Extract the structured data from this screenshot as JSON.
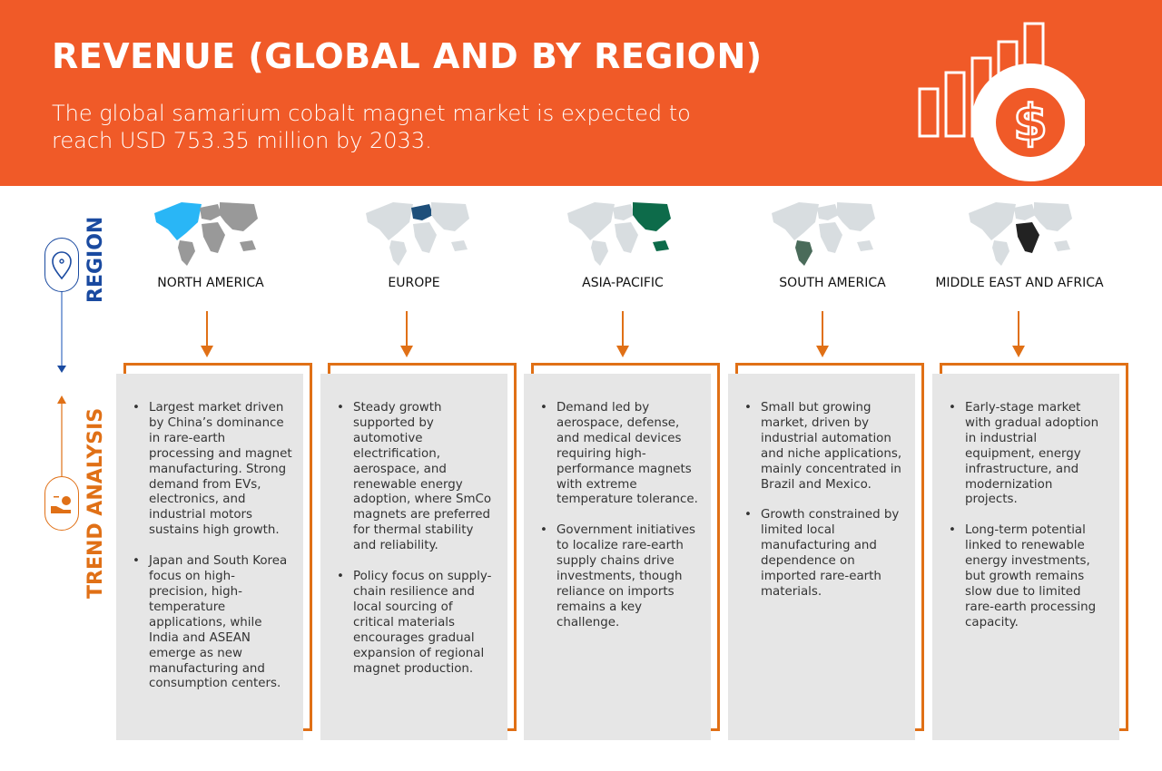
{
  "header": {
    "title": "REVENUE (GLOBAL AND BY REGION)",
    "subtitle": "The global samarium cobalt magnet market is expected to reach USD 753.35 million by 2033.",
    "icon": "bar-chart-dollar-icon",
    "color": "#f05a28"
  },
  "side": {
    "region_label": "REGION",
    "trend_label": "TREND ANALYSIS",
    "region_color": "#1a4aa0",
    "trend_color": "#e07016"
  },
  "regions": [
    {
      "name": "NORTH AMERICA",
      "highlight": "#29b6f6",
      "bullets": [
        "Largest market driven by China’s dominance in rare-earth processing and magnet manufacturing. Strong demand from EVs, electronics, and industrial motors sustains high growth.",
        "Japan and South Korea focus on high-precision, high-temperature applications, while India and ASEAN emerge as new manufacturing and consumption centers."
      ]
    },
    {
      "name": "EUROPE",
      "highlight": "#1e4f7a",
      "bullets": [
        "Steady growth supported by automotive electrification, aerospace, and renewable energy adoption, where SmCo magnets are preferred for thermal stability and reliability.",
        "Policy focus on supply-chain resilience and local sourcing of critical materials encourages gradual expansion of regional magnet production."
      ]
    },
    {
      "name": "ASIA-PACIFIC",
      "highlight": "#0d6b4a",
      "bullets": [
        "Demand led by aerospace, defense, and medical devices requiring high-performance magnets with extreme temperature tolerance.",
        "Government initiatives to localize rare-earth supply chains drive investments, though reliance on imports remains a key challenge."
      ]
    },
    {
      "name": "SOUTH AMERICA",
      "highlight": "#4a6b5a",
      "bullets": [
        "Small but growing market, driven by industrial automation and niche applications, mainly concentrated in Brazil and Mexico.",
        "Growth constrained by limited local manufacturing and dependence on imported rare-earth materials."
      ]
    },
    {
      "name": "MIDDLE EAST AND AFRICA",
      "highlight": "#222222",
      "bullets": [
        "Early-stage market with gradual adoption in industrial equipment, energy infrastructure, and modernization projects.",
        "Long-term potential linked to renewable energy investments, but growth remains slow due to limited rare-earth processing capacity."
      ]
    }
  ]
}
